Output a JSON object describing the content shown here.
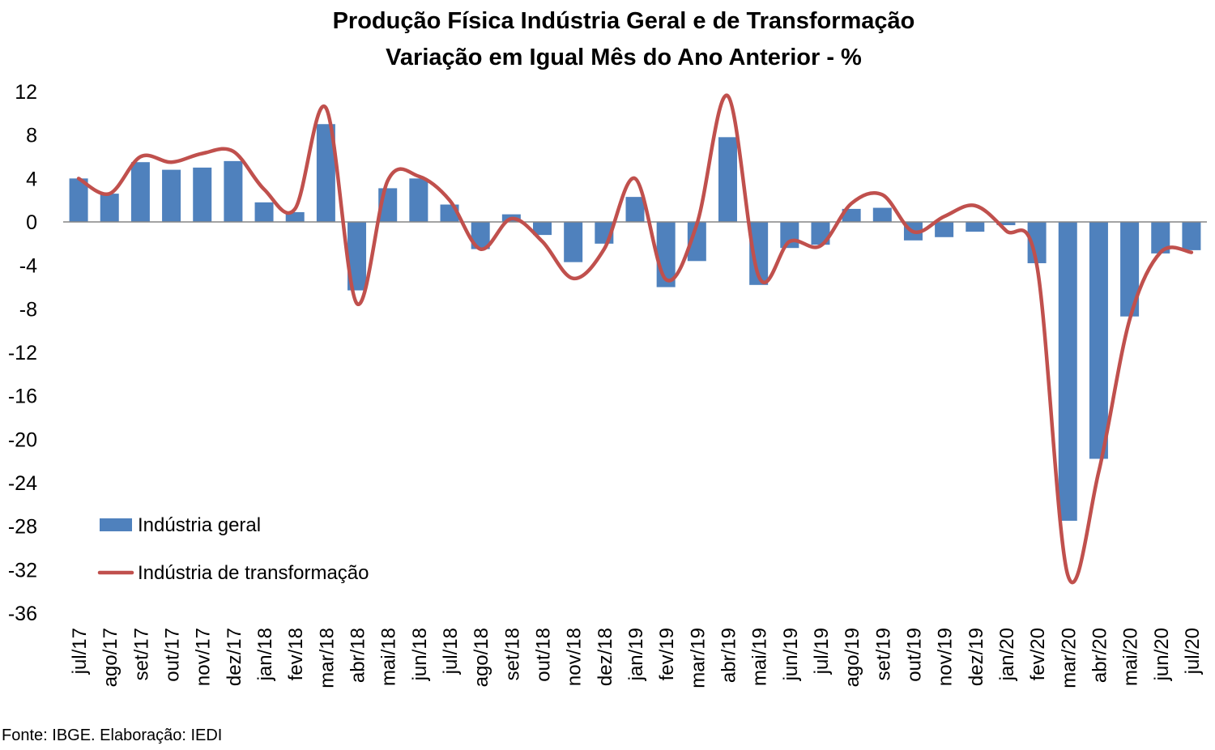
{
  "chart_data": {
    "type": "bar",
    "title": "Produção Física Indústria Geral e de Transformação",
    "subtitle": "Variação em Igual Mês do Ano Anterior - %",
    "categories": [
      "jul/17",
      "ago/17",
      "set/17",
      "out/17",
      "nov/17",
      "dez/17",
      "jan/18",
      "fev/18",
      "mar/18",
      "abr/18",
      "mai/18",
      "jun/18",
      "jul/18",
      "ago/18",
      "set/18",
      "out/18",
      "nov/18",
      "dez/18",
      "jan/19",
      "fev/19",
      "mar/19",
      "abr/19",
      "mai/19",
      "jun/19",
      "jul/19",
      "ago/19",
      "set/19",
      "out/19",
      "nov/19",
      "dez/19",
      "jan/20",
      "fev/20",
      "mar/20",
      "abr/20",
      "mai/20",
      "jun/20",
      "jul/20"
    ],
    "series": [
      {
        "name": "Indústria geral",
        "type": "bar",
        "color": "#4F81BD",
        "values": [
          4.0,
          2.6,
          5.5,
          4.8,
          5.0,
          5.6,
          1.8,
          0.9,
          9.0,
          -6.3,
          3.1,
          4.0,
          1.6,
          -2.5,
          0.7,
          -1.2,
          -3.7,
          -2.0,
          2.3,
          -6.0,
          -3.6,
          7.8,
          -5.8,
          -2.4,
          -2.1,
          1.2,
          1.3,
          -1.7,
          -1.4,
          -0.9,
          -0.3,
          -3.8,
          -27.5,
          -21.8,
          -8.7,
          -2.9,
          -2.6
        ]
      },
      {
        "name": "Indústria de transformação",
        "type": "line",
        "color": "#C0504D",
        "values": [
          4.0,
          2.6,
          6.0,
          5.5,
          6.3,
          6.5,
          3.0,
          1.2,
          10.5,
          -7.5,
          3.8,
          4.2,
          2.0,
          -2.5,
          0.3,
          -1.8,
          -5.2,
          -2.5,
          4.0,
          -5.3,
          -0.2,
          11.6,
          -5.0,
          -1.8,
          -2.2,
          1.7,
          2.5,
          -0.9,
          0.5,
          1.5,
          -0.8,
          -4.0,
          -32.5,
          -23.0,
          -9.0,
          -2.8,
          -2.8
        ]
      }
    ],
    "ylim": [
      -36,
      12
    ],
    "yticks": [
      "12",
      "8",
      "4",
      "0",
      "-4",
      "-8",
      "-12",
      "-16",
      "-20",
      "-24",
      "-28",
      "-32",
      "-36"
    ],
    "legend": "left-bottom inside plot",
    "grid": false
  },
  "source": "Fonte: IBGE. Elaboração: IEDI"
}
